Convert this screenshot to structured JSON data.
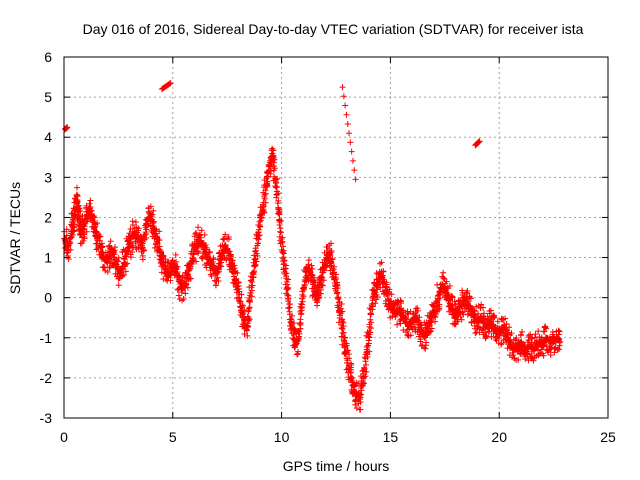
{
  "chart_data": {
    "type": "scatter",
    "title": "Day 016 of 2016, Sidereal Day-to-day VTEC variation (SDTVAR) for receiver ista",
    "xlabel": "GPS time / hours",
    "ylabel": "SDTVAR / TECUs",
    "xlim": [
      0,
      25
    ],
    "ylim": [
      -3,
      6
    ],
    "xticks": [
      0,
      5,
      10,
      15,
      20,
      25
    ],
    "yticks": [
      -3,
      -2,
      -1,
      0,
      1,
      2,
      3,
      4,
      5,
      6
    ],
    "grid": true,
    "marker": "+",
    "color": "#ff0000",
    "series": [
      {
        "name": "SDTVAR",
        "trace_x": [
          0.0,
          0.2,
          0.4,
          0.5,
          0.6,
          0.7,
          0.8,
          1.0,
          1.2,
          1.4,
          1.6,
          1.8,
          2.0,
          2.2,
          2.4,
          2.6,
          2.8,
          3.0,
          3.2,
          3.4,
          3.6,
          3.8,
          4.0,
          4.2,
          4.4,
          4.6,
          4.8,
          5.0,
          5.2,
          5.4,
          5.6,
          5.8,
          6.0,
          6.2,
          6.4,
          6.6,
          6.8,
          7.0,
          7.2,
          7.4,
          7.6,
          7.8,
          8.0,
          8.2,
          8.4,
          8.6,
          8.8,
          9.0,
          9.2,
          9.4,
          9.6,
          9.8,
          10.0,
          10.2,
          10.4,
          10.6,
          10.8,
          11.0,
          11.2,
          11.4,
          11.6,
          11.8,
          12.0,
          12.2,
          12.4,
          12.6,
          12.8,
          13.0,
          13.2,
          13.4,
          13.6,
          13.8,
          14.0,
          14.2,
          14.4,
          14.6,
          14.8,
          15.0,
          15.2,
          15.4,
          15.6,
          15.8,
          16.0,
          16.2,
          16.4,
          16.6,
          16.8,
          17.0,
          17.2,
          17.4,
          17.6,
          17.8,
          18.0,
          18.2,
          18.4,
          18.6,
          18.8,
          19.0,
          19.2,
          19.4,
          19.6,
          19.8,
          20.0,
          20.2,
          20.4,
          20.6,
          20.8,
          21.0,
          21.2,
          21.4,
          21.6,
          21.8,
          22.0,
          22.2,
          22.4,
          22.6,
          22.8
        ],
        "trace_y": [
          1.5,
          1.2,
          1.8,
          2.1,
          2.4,
          2.0,
          1.6,
          1.9,
          2.2,
          1.8,
          1.4,
          1.0,
          0.9,
          1.2,
          0.8,
          0.6,
          1.0,
          1.3,
          1.6,
          1.5,
          1.2,
          1.9,
          2.0,
          1.6,
          1.2,
          0.8,
          0.5,
          0.9,
          0.6,
          0.2,
          0.4,
          0.8,
          1.2,
          1.5,
          1.3,
          1.0,
          0.8,
          0.6,
          1.0,
          1.3,
          1.1,
          0.6,
          0.2,
          -0.4,
          -0.8,
          0.2,
          1.0,
          1.8,
          2.4,
          3.2,
          3.6,
          2.5,
          1.5,
          0.5,
          -0.5,
          -1.2,
          -1.0,
          0.2,
          0.8,
          0.5,
          0.0,
          0.4,
          0.9,
          1.1,
          0.6,
          0.0,
          -0.8,
          -1.5,
          -2.0,
          -2.4,
          -2.5,
          -1.8,
          -1.0,
          0.0,
          0.3,
          0.6,
          0.2,
          -0.2,
          -0.4,
          -0.3,
          -0.5,
          -0.7,
          -0.6,
          -0.5,
          -0.8,
          -1.0,
          -0.6,
          -0.3,
          0.0,
          0.3,
          0.1,
          -0.2,
          -0.5,
          -0.3,
          0.0,
          -0.2,
          -0.4,
          -0.6,
          -0.5,
          -0.7,
          -0.6,
          -0.8,
          -0.9,
          -0.7,
          -1.0,
          -1.2,
          -1.3,
          -1.1,
          -1.4,
          -1.2,
          -1.3,
          -1.1,
          -1.2,
          -1.0,
          -1.1,
          -1.0,
          -1.1
        ],
        "clusters": [
          {
            "x": [
              0.05,
              0.15
            ],
            "y": [
              4.2,
              4.25
            ]
          },
          {
            "x": [
              4.5,
              4.9
            ],
            "y": [
              5.2,
              5.35
            ]
          },
          {
            "x": [
              12.8,
              13.4
            ],
            "y": [
              5.25,
              2.95
            ]
          },
          {
            "x": [
              18.9,
              19.1
            ],
            "y": [
              3.8,
              3.9
            ]
          }
        ]
      }
    ]
  }
}
